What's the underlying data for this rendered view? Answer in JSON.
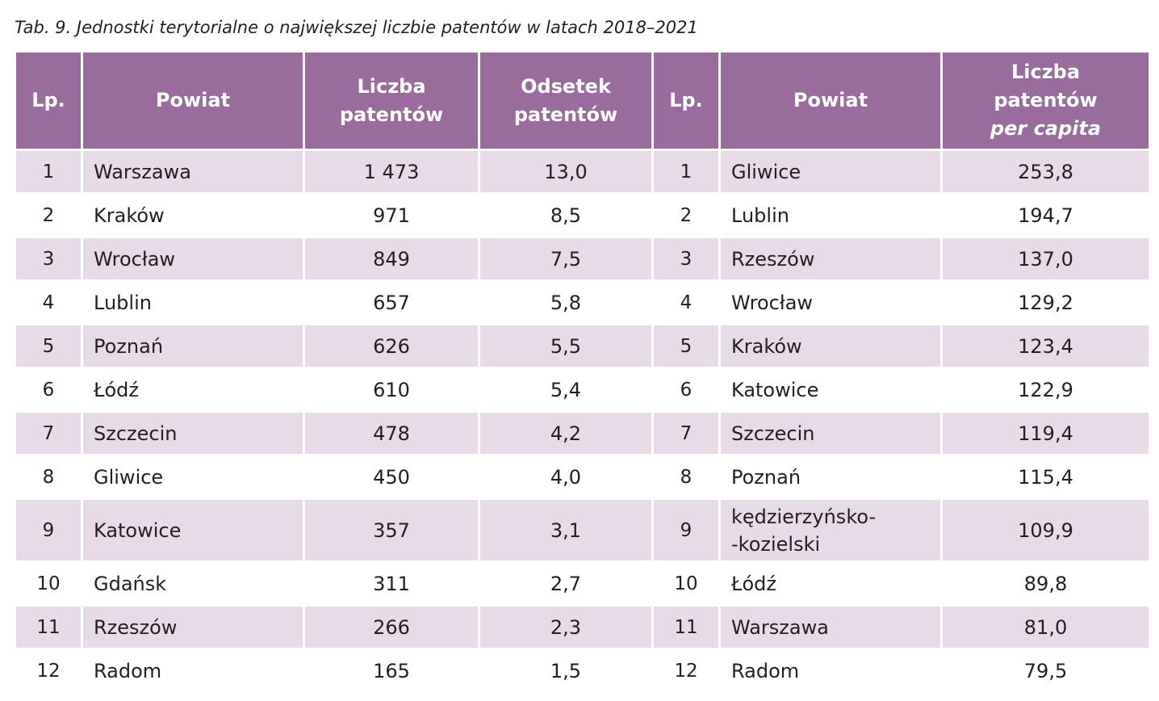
{
  "caption": "Tab. 9. Jednostki terytorialne o największej liczbie patentów w latach 2018–2021",
  "colors": {
    "header_bg": "#996c9d",
    "band_bg": "#e6dbe7",
    "header_text": "#ffffff"
  },
  "headers": {
    "lp1": "Lp.",
    "powiat1": "Powiat",
    "liczba_line1": "Liczba",
    "liczba_line2": "patentów",
    "odsetek_line1": "Odsetek",
    "odsetek_line2": "patentów",
    "lp2": "Lp.",
    "powiat2": "Powiat",
    "pc_line1": "Liczba",
    "pc_line2": "patentów",
    "pc_line3": "per capita"
  },
  "rows": [
    {
      "lp1": "1",
      "powiat1": "Warszawa",
      "liczba": "1 473",
      "odsetek": "13,0",
      "lp2": "1",
      "powiat2": "Gliwice",
      "per_capita": "253,8"
    },
    {
      "lp1": "2",
      "powiat1": "Kraków",
      "liczba": "971",
      "odsetek": "8,5",
      "lp2": "2",
      "powiat2": "Lublin",
      "per_capita": "194,7"
    },
    {
      "lp1": "3",
      "powiat1": "Wrocław",
      "liczba": "849",
      "odsetek": "7,5",
      "lp2": "3",
      "powiat2": "Rzeszów",
      "per_capita": "137,0"
    },
    {
      "lp1": "4",
      "powiat1": "Lublin",
      "liczba": "657",
      "odsetek": "5,8",
      "lp2": "4",
      "powiat2": "Wrocław",
      "per_capita": "129,2"
    },
    {
      "lp1": "5",
      "powiat1": "Poznań",
      "liczba": "626",
      "odsetek": "5,5",
      "lp2": "5",
      "powiat2": "Kraków",
      "per_capita": "123,4"
    },
    {
      "lp1": "6",
      "powiat1": "Łódź",
      "liczba": "610",
      "odsetek": "5,4",
      "lp2": "6",
      "powiat2": "Katowice",
      "per_capita": "122,9"
    },
    {
      "lp1": "7",
      "powiat1": "Szczecin",
      "liczba": "478",
      "odsetek": "4,2",
      "lp2": "7",
      "powiat2": "Szczecin",
      "per_capita": "119,4"
    },
    {
      "lp1": "8",
      "powiat1": "Gliwice",
      "liczba": "450",
      "odsetek": "4,0",
      "lp2": "8",
      "powiat2": "Poznań",
      "per_capita": "115,4"
    },
    {
      "lp1": "9",
      "powiat1": "Katowice",
      "liczba": "357",
      "odsetek": "3,1",
      "lp2": "9",
      "powiat2_line1": "kędzierzyńsko-",
      "powiat2_line2": "-kozielski",
      "per_capita": "109,9"
    },
    {
      "lp1": "10",
      "powiat1": "Gdańsk",
      "liczba": "311",
      "odsetek": "2,7",
      "lp2": "10",
      "powiat2": "Łódź",
      "per_capita": "89,8"
    },
    {
      "lp1": "11",
      "powiat1": "Rzeszów",
      "liczba": "266",
      "odsetek": "2,3",
      "lp2": "11",
      "powiat2": "Warszawa",
      "per_capita": "81,0"
    },
    {
      "lp1": "12",
      "powiat1": "Radom",
      "liczba": "165",
      "odsetek": "1,5",
      "lp2": "12",
      "powiat2": "Radom",
      "per_capita": "79,5"
    }
  ]
}
